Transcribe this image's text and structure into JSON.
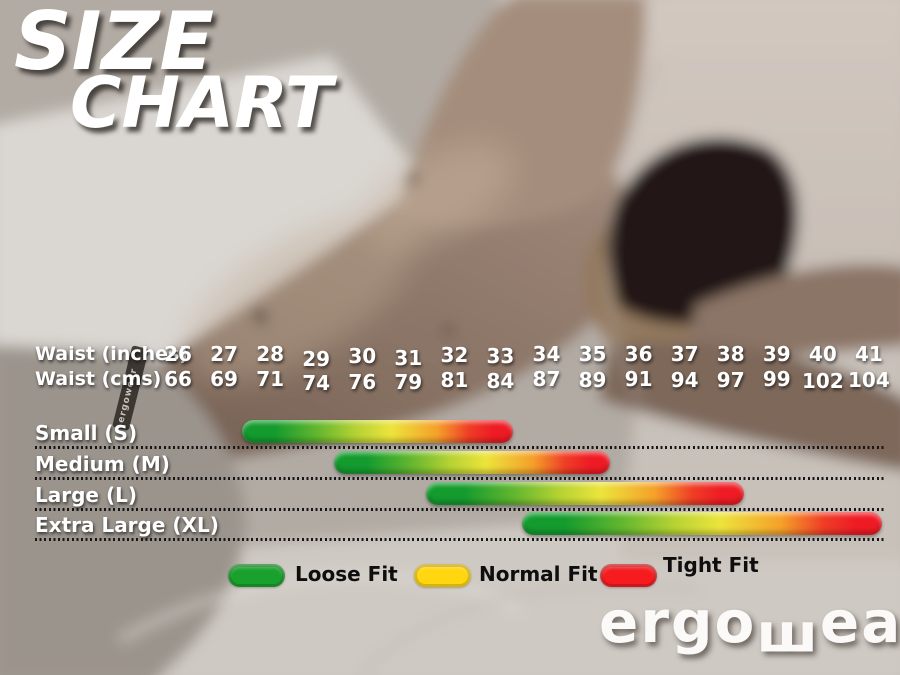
{
  "title": {
    "line1": "SIZE",
    "line2": "CHART"
  },
  "axis": {
    "inches_label": "Waist (inches)",
    "cms_label": "Waist (cms)",
    "inches": [
      "26",
      "27",
      "28",
      "29",
      "30",
      "31",
      "32",
      "33",
      "34",
      "35",
      "36",
      "37",
      "38",
      "39",
      "40",
      "41"
    ],
    "cms": [
      "66",
      "69",
      "71",
      "74",
      "76",
      "79",
      "81",
      "84",
      "87",
      "89",
      "91",
      "94",
      "97",
      "99",
      "102",
      "104"
    ]
  },
  "chart_data": {
    "type": "bar",
    "subtype": "horizontal-range-bars",
    "title": "SIZE CHART",
    "x_axis": {
      "label_top": "Waist (inches)",
      "label_bottom": "Waist (cms)",
      "inches": [
        26,
        27,
        28,
        29,
        30,
        31,
        32,
        33,
        34,
        35,
        36,
        37,
        38,
        39,
        40,
        41
      ],
      "cms": [
        66,
        69,
        71,
        74,
        76,
        79,
        81,
        84,
        87,
        89,
        91,
        94,
        97,
        99,
        102,
        104
      ],
      "xlim_in": [
        26,
        41
      ]
    },
    "series": [
      {
        "label": "Small (S)",
        "waist_in_start": 27.4,
        "waist_in_end": 33.3
      },
      {
        "label": "Medium (M)",
        "waist_in_start": 29.4,
        "waist_in_end": 35.4
      },
      {
        "label": "Large (L)",
        "waist_in_start": 31.4,
        "waist_in_end": 38.3
      },
      {
        "label": "Extra Large (XL)",
        "waist_in_start": 33.5,
        "waist_in_end": 41.3
      }
    ],
    "bar_gradient": [
      "#149b2e",
      "#64b72f",
      "#b5d233",
      "#ece43c",
      "#f5a02a",
      "#ef3c26",
      "#ee1b24"
    ],
    "legend": [
      {
        "label": "Loose Fit",
        "color": "#1aa02c",
        "meaning": "green zone"
      },
      {
        "label": "Normal Fit",
        "color": "#ffd60f",
        "meaning": "yellow zone"
      },
      {
        "label": "Tight Fit",
        "color": "#f51b1f",
        "meaning": "red zone"
      }
    ],
    "grid": "dotted row separators",
    "legend_position": "bottom"
  },
  "brand": {
    "logo_pre": "ergo",
    "logo_w": "ш",
    "logo_post": "ear",
    "registered": "®",
    "waistband_text": "ergowear"
  }
}
